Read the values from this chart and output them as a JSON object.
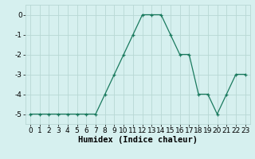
{
  "x": [
    0,
    1,
    2,
    3,
    4,
    5,
    6,
    7,
    8,
    9,
    10,
    11,
    12,
    13,
    14,
    15,
    16,
    17,
    18,
    19,
    20,
    21,
    22,
    23
  ],
  "y": [
    -5,
    -5,
    -5,
    -5,
    -5,
    -5,
    -5,
    -5,
    -4,
    -3,
    -2,
    -1,
    0,
    0,
    0,
    -1,
    -2,
    -2,
    -4,
    -4,
    -5,
    -4,
    -3,
    -3
  ],
  "line_color": "#1a7a5e",
  "marker": "+",
  "marker_color": "#1a7a5e",
  "bg_color": "#d6f0ef",
  "grid_color": "#b8d8d4",
  "xlabel": "Humidex (Indice chaleur)",
  "ylim": [
    -5.5,
    0.5
  ],
  "xlim": [
    -0.5,
    23.5
  ],
  "yticks": [
    -5,
    -4,
    -3,
    -2,
    -1,
    0
  ],
  "xticks": [
    0,
    1,
    2,
    3,
    4,
    5,
    6,
    7,
    8,
    9,
    10,
    11,
    12,
    13,
    14,
    15,
    16,
    17,
    18,
    19,
    20,
    21,
    22,
    23
  ],
  "tick_fontsize": 6.5,
  "xlabel_fontsize": 7.5
}
